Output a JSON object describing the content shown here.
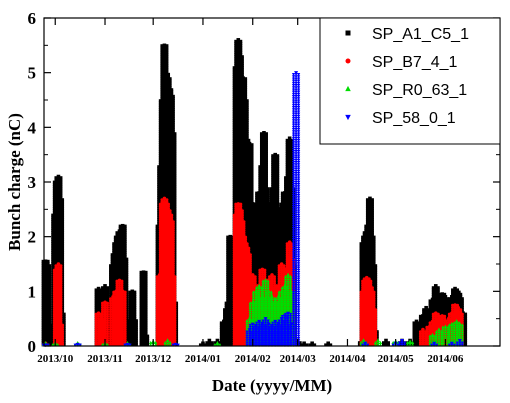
{
  "chart_data": {
    "type": "scatter",
    "xlabel": "Date (yyyy/MM)",
    "ylabel": "Bunch charge (nC)",
    "xlim": [
      "2013-09-24",
      "2014-07-05"
    ],
    "ylim": [
      0,
      6
    ],
    "y_ticks": [
      "0",
      "1",
      "2",
      "3",
      "4",
      "5",
      "6"
    ],
    "x_ticks": [
      {
        "label": "2013/10",
        "date": "2013-10-01"
      },
      {
        "label": "2013/11",
        "date": "2013-11-01"
      },
      {
        "label": "2013/12",
        "date": "2013-12-01"
      },
      {
        "label": "2014/01",
        "date": "2014-01-01"
      },
      {
        "label": "2014/02",
        "date": "2014-02-01"
      },
      {
        "label": "2014/03",
        "date": "2014-03-01"
      },
      {
        "label": "2014/04",
        "date": "2014-04-01"
      },
      {
        "label": "2014/05",
        "date": "2014-05-01"
      },
      {
        "label": "2014/06",
        "date": "2014-06-01"
      }
    ],
    "legend_position": "top-right",
    "series": [
      {
        "name": "SP_A1_C5_1",
        "color": "#000000",
        "marker": "square",
        "points": [
          [
            "2013-09-25",
            1.55
          ],
          [
            "2013-09-26",
            1.5
          ],
          [
            "2013-09-27",
            0.4
          ],
          [
            "2013-10-01",
            2.4
          ],
          [
            "2013-10-02",
            3.0
          ],
          [
            "2013-10-03",
            3.1
          ],
          [
            "2013-10-04",
            2.7
          ],
          [
            "2013-10-05",
            0.6
          ],
          [
            "2013-10-28",
            1.05
          ],
          [
            "2013-10-29",
            0.95
          ],
          [
            "2013-10-30",
            1.0
          ],
          [
            "2013-11-01",
            1.1
          ],
          [
            "2013-11-02",
            0.8
          ],
          [
            "2013-11-03",
            0.5
          ],
          [
            "2013-11-05",
            0.3
          ],
          [
            "2013-11-06",
            1.5
          ],
          [
            "2013-11-07",
            1.7
          ],
          [
            "2013-11-08",
            1.9
          ],
          [
            "2013-11-09",
            2.0
          ],
          [
            "2013-11-10",
            2.1
          ],
          [
            "2013-11-11",
            1.8
          ],
          [
            "2013-11-12",
            2.2
          ],
          [
            "2013-11-13",
            1.6
          ],
          [
            "2013-11-14",
            0.5
          ],
          [
            "2013-11-18",
            1.0
          ],
          [
            "2013-11-19",
            0.5
          ],
          [
            "2013-11-25",
            1.35
          ],
          [
            "2013-11-26",
            0.2
          ],
          [
            "2013-12-05",
            2.2
          ],
          [
            "2013-12-06",
            3.3
          ],
          [
            "2013-12-07",
            4.5
          ],
          [
            "2013-12-08",
            5.5
          ],
          [
            "2013-12-09",
            5.0
          ],
          [
            "2013-12-10",
            4.9
          ],
          [
            "2013-12-11",
            4.7
          ],
          [
            "2013-12-12",
            4.6
          ],
          [
            "2013-12-13",
            3.9
          ],
          [
            "2013-12-14",
            0.8
          ],
          [
            "2014-01-01",
            0.05
          ],
          [
            "2014-01-05",
            0.1
          ],
          [
            "2014-01-10",
            0.1
          ],
          [
            "2014-01-14",
            0.45
          ],
          [
            "2014-01-16",
            0.7
          ],
          [
            "2014-01-17",
            0.8
          ],
          [
            "2014-01-18",
            2.0
          ],
          [
            "2014-01-19",
            0.3
          ],
          [
            "2014-01-22",
            5.1
          ],
          [
            "2014-01-23",
            5.6
          ],
          [
            "2014-01-24",
            5.3
          ],
          [
            "2014-01-25",
            4.8
          ],
          [
            "2014-01-26",
            4.9
          ],
          [
            "2014-01-27",
            4.5
          ],
          [
            "2014-01-28",
            3.8
          ],
          [
            "2014-01-29",
            3.5
          ],
          [
            "2014-01-30",
            3.7
          ],
          [
            "2014-02-01",
            2.6
          ],
          [
            "2014-02-02",
            2.4
          ],
          [
            "2014-02-03",
            2.0
          ],
          [
            "2014-02-04",
            2.3
          ],
          [
            "2014-02-05",
            2.8
          ],
          [
            "2014-02-06",
            2.4
          ],
          [
            "2014-02-07",
            3.3
          ],
          [
            "2014-02-08",
            3.9
          ],
          [
            "2014-02-09",
            2.9
          ],
          [
            "2014-02-10",
            2.3
          ],
          [
            "2014-02-11",
            2.6
          ],
          [
            "2014-02-12",
            2.0
          ],
          [
            "2014-02-13",
            2.4
          ],
          [
            "2014-02-14",
            2.9
          ],
          [
            "2014-02-15",
            3.5
          ],
          [
            "2014-02-16",
            2.2
          ],
          [
            "2014-02-17",
            2.5
          ],
          [
            "2014-02-18",
            1.9
          ],
          [
            "2014-02-19",
            2.2
          ],
          [
            "2014-02-20",
            2.6
          ],
          [
            "2014-02-21",
            2.8
          ],
          [
            "2014-02-22",
            2.3
          ],
          [
            "2014-02-23",
            3.1
          ],
          [
            "2014-02-24",
            3.8
          ],
          [
            "2014-02-25",
            2.9
          ],
          [
            "2014-02-26",
            1.5
          ],
          [
            "2014-03-01",
            0.1
          ],
          [
            "2014-03-05",
            0.05
          ],
          [
            "2014-03-10",
            0.05
          ],
          [
            "2014-03-20",
            0.05
          ],
          [
            "2014-04-10",
            0.1
          ],
          [
            "2014-04-11",
            1.9
          ],
          [
            "2014-04-12",
            2.0
          ],
          [
            "2014-04-13",
            2.1
          ],
          [
            "2014-04-14",
            2.2
          ],
          [
            "2014-04-15",
            2.7
          ],
          [
            "2014-04-16",
            2.0
          ],
          [
            "2014-04-17",
            1.5
          ],
          [
            "2014-04-18",
            0.3
          ],
          [
            "2014-04-25",
            0.1
          ],
          [
            "2014-05-05",
            0.1
          ],
          [
            "2014-05-10",
            0.1
          ],
          [
            "2014-05-14",
            0.45
          ],
          [
            "2014-05-15",
            0.3
          ],
          [
            "2014-05-18",
            0.55
          ],
          [
            "2014-05-20",
            0.7
          ],
          [
            "2014-05-22",
            0.6
          ],
          [
            "2014-05-24",
            0.85
          ],
          [
            "2014-05-26",
            1.1
          ],
          [
            "2014-05-28",
            0.8
          ],
          [
            "2014-05-30",
            0.95
          ],
          [
            "2014-06-01",
            0.9
          ],
          [
            "2014-06-03",
            0.75
          ],
          [
            "2014-06-05",
            0.9
          ],
          [
            "2014-06-07",
            1.05
          ],
          [
            "2014-06-08",
            1.0
          ],
          [
            "2014-06-09",
            0.95
          ],
          [
            "2014-06-10",
            0.9
          ],
          [
            "2014-06-12",
            0.6
          ]
        ]
      },
      {
        "name": "SP_B7_4_1",
        "color": "#ff0000",
        "marker": "circle",
        "points": [
          [
            "2013-09-25",
            0.05
          ],
          [
            "2013-10-02",
            1.4
          ],
          [
            "2013-10-03",
            1.5
          ],
          [
            "2013-10-04",
            0.4
          ],
          [
            "2013-10-28",
            0.6
          ],
          [
            "2013-10-30",
            0.5
          ],
          [
            "2013-11-01",
            0.8
          ],
          [
            "2013-11-06",
            0.9
          ],
          [
            "2013-11-08",
            1.0
          ],
          [
            "2013-11-10",
            1.2
          ],
          [
            "2013-11-12",
            1.0
          ],
          [
            "2013-12-05",
            1.3
          ],
          [
            "2013-12-06",
            1.3
          ],
          [
            "2013-12-07",
            2.6
          ],
          [
            "2013-12-08",
            2.7
          ],
          [
            "2013-12-09",
            2.6
          ],
          [
            "2013-12-10",
            2.5
          ],
          [
            "2013-12-11",
            2.4
          ],
          [
            "2013-12-12",
            2.3
          ],
          [
            "2013-12-13",
            1.3
          ],
          [
            "2014-01-22",
            2.4
          ],
          [
            "2014-01-23",
            2.6
          ],
          [
            "2014-01-24",
            2.5
          ],
          [
            "2014-01-25",
            2.3
          ],
          [
            "2014-01-26",
            2.0
          ],
          [
            "2014-01-27",
            1.9
          ],
          [
            "2014-01-28",
            1.8
          ],
          [
            "2014-01-29",
            1.7
          ],
          [
            "2014-02-01",
            1.3
          ],
          [
            "2014-02-04",
            1.1
          ],
          [
            "2014-02-07",
            1.4
          ],
          [
            "2014-02-10",
            1.2
          ],
          [
            "2014-02-13",
            1.3
          ],
          [
            "2014-02-16",
            1.1
          ],
          [
            "2014-02-19",
            1.5
          ],
          [
            "2014-02-22",
            1.4
          ],
          [
            "2014-02-24",
            1.9
          ],
          [
            "2014-02-25",
            1.6
          ],
          [
            "2014-04-11",
            1.0
          ],
          [
            "2014-04-12",
            1.2
          ],
          [
            "2014-04-13",
            1.25
          ],
          [
            "2014-04-14",
            1.2
          ],
          [
            "2014-04-15",
            1.1
          ],
          [
            "2014-04-16",
            1.0
          ],
          [
            "2014-04-17",
            0.7
          ],
          [
            "2014-05-18",
            0.3
          ],
          [
            "2014-05-22",
            0.35
          ],
          [
            "2014-05-24",
            0.45
          ],
          [
            "2014-05-26",
            0.6
          ],
          [
            "2014-05-28",
            0.5
          ],
          [
            "2014-05-30",
            0.55
          ],
          [
            "2014-06-03",
            0.5
          ],
          [
            "2014-06-05",
            0.6
          ],
          [
            "2014-06-07",
            0.75
          ],
          [
            "2014-06-09",
            0.7
          ],
          [
            "2014-06-10",
            0.6
          ]
        ]
      },
      {
        "name": "SP_R0_63_1",
        "color": "#00dd00",
        "marker": "triangle-up",
        "points": [
          [
            "2013-09-25",
            0.05
          ],
          [
            "2013-10-01",
            0.05
          ],
          [
            "2013-10-15",
            0.05
          ],
          [
            "2013-11-01",
            0.05
          ],
          [
            "2013-11-15",
            0.05
          ],
          [
            "2013-12-01",
            0.08
          ],
          [
            "2013-12-10",
            0.1
          ],
          [
            "2014-01-10",
            0.05
          ],
          [
            "2014-01-30",
            0.5
          ],
          [
            "2014-02-01",
            0.8
          ],
          [
            "2014-02-03",
            1.0
          ],
          [
            "2014-02-05",
            1.1
          ],
          [
            "2014-02-07",
            0.9
          ],
          [
            "2014-02-09",
            1.2
          ],
          [
            "2014-02-11",
            1.0
          ],
          [
            "2014-02-13",
            0.9
          ],
          [
            "2014-02-15",
            0.8
          ],
          [
            "2014-02-17",
            0.9
          ],
          [
            "2014-02-19",
            1.0
          ],
          [
            "2014-02-21",
            1.1
          ],
          [
            "2014-02-23",
            1.3
          ],
          [
            "2014-02-25",
            1.0
          ],
          [
            "2014-04-11",
            0.1
          ],
          [
            "2014-04-20",
            0.1
          ],
          [
            "2014-05-01",
            0.08
          ],
          [
            "2014-05-10",
            0.08
          ],
          [
            "2014-05-24",
            0.2
          ],
          [
            "2014-05-28",
            0.3
          ],
          [
            "2014-06-01",
            0.35
          ],
          [
            "2014-06-05",
            0.4
          ],
          [
            "2014-06-08",
            0.45
          ],
          [
            "2014-06-10",
            0.4
          ]
        ]
      },
      {
        "name": "SP_58_0_1",
        "color": "#0000ff",
        "marker": "triangle-down",
        "points": [
          [
            "2013-09-25",
            0.02
          ],
          [
            "2013-10-15",
            0.03
          ],
          [
            "2013-11-15",
            0.03
          ],
          [
            "2013-12-15",
            0.03
          ],
          [
            "2014-01-30",
            0.3
          ],
          [
            "2014-02-01",
            0.4
          ],
          [
            "2014-02-03",
            0.35
          ],
          [
            "2014-02-05",
            0.45
          ],
          [
            "2014-02-07",
            0.4
          ],
          [
            "2014-02-09",
            0.5
          ],
          [
            "2014-02-11",
            0.4
          ],
          [
            "2014-02-13",
            0.35
          ],
          [
            "2014-02-15",
            0.45
          ],
          [
            "2014-02-17",
            0.4
          ],
          [
            "2014-02-19",
            0.5
          ],
          [
            "2014-02-21",
            0.55
          ],
          [
            "2014-02-23",
            0.6
          ],
          [
            "2014-02-25",
            0.4
          ],
          [
            "2014-02-28",
            5.0
          ],
          [
            "2014-04-12",
            0.05
          ],
          [
            "2014-05-01",
            0.05
          ],
          [
            "2014-05-05",
            0.1
          ],
          [
            "2014-05-25",
            0.05
          ],
          [
            "2014-06-05",
            0.05
          ],
          [
            "2014-06-10",
            0.1
          ]
        ]
      }
    ]
  }
}
